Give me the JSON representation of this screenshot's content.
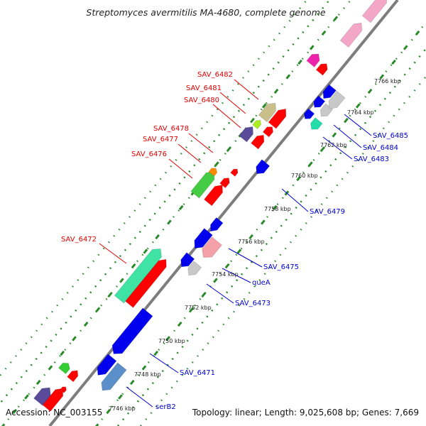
{
  "title": "Streptomyces avermitilis MA-4680, complete genome",
  "accession": "Accession: NC_003155",
  "summary": "Topology: linear; Length: 9,025,608 bp; Genes: 7,669",
  "colors": {
    "red_label": "#e00000",
    "blue_label": "#0000cc",
    "tick_green": "#2a8a2a",
    "axis_gray": "#8c8c8c"
  },
  "kbp_ticks": [
    "7746 kbp",
    "7748 kbp",
    "7750 kbp",
    "7752 kbp",
    "7754 kbp",
    "7756 kbp",
    "7758 kbp",
    "7760 kbp",
    "7762 kbp",
    "7764 kbp",
    "7766 kbp"
  ],
  "genes_forward": [
    "SAV_6472",
    "SAV_6476",
    "SAV_6477",
    "SAV_6478",
    "SAV_6480",
    "SAV_6481",
    "SAV_6482"
  ],
  "genes_reverse": [
    "serB2",
    "SAV_6471",
    "SAV_6473",
    "queA",
    "SAV_6475",
    "SAV_6479",
    "SAV_6483",
    "SAV_6484",
    "SAV_6485"
  ]
}
